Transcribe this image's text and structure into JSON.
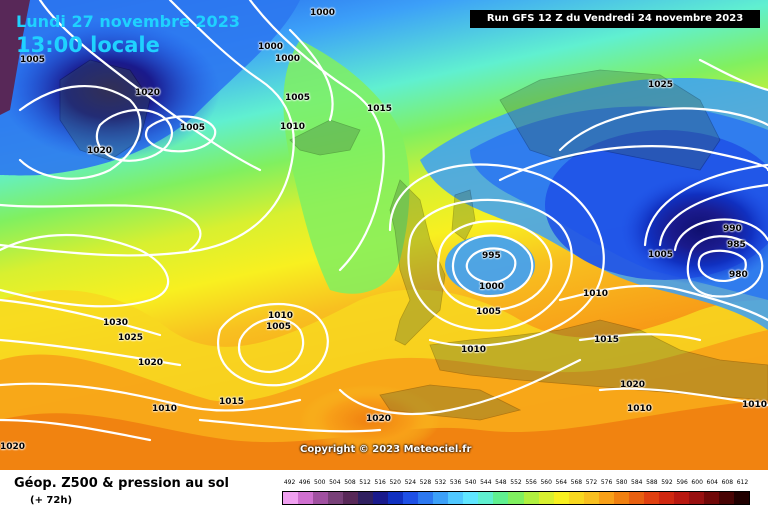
{
  "header": {
    "date": "Lundi 27 novembre 2023",
    "time": "13:00 locale",
    "run": "Run GFS 12 Z du Vendredi 24 novembre 2023"
  },
  "copyright": "Copyright © 2023 Meteociel.fr",
  "footer": {
    "title": "Géop. Z500 & pression au sol",
    "subtitle": "(+ 72h)"
  },
  "isobar_labels": [
    "1000",
    "1000",
    "1000",
    "1005",
    "1020",
    "1005",
    "1005",
    "1020",
    "1010",
    "1015",
    "1025",
    "995",
    "1000",
    "1005",
    "1005",
    "990",
    "985",
    "980",
    "1010",
    "1030",
    "1010",
    "1005",
    "1025",
    "1020",
    "1010",
    "1015",
    "1010",
    "1015",
    "1020",
    "1010",
    "1020",
    "1010",
    "1020"
  ],
  "scale": {
    "labels": [
      "492",
      "496",
      "500",
      "504",
      "508",
      "512",
      "516",
      "520",
      "524",
      "528",
      "532",
      "536",
      "540",
      "544",
      "548",
      "552",
      "556",
      "560",
      "564",
      "568",
      "572",
      "576",
      "580",
      "584",
      "588",
      "592",
      "596",
      "600",
      "604",
      "608",
      "612"
    ],
    "colors": [
      "#f0a0f0",
      "#d070d0",
      "#a050a0",
      "#784078",
      "#582858",
      "#302060",
      "#1a1a8c",
      "#1030c0",
      "#1e50e6",
      "#2c78f0",
      "#3ca0f8",
      "#50c8ff",
      "#60e6ff",
      "#60f0d0",
      "#60f090",
      "#80f060",
      "#b0f040",
      "#d8f030",
      "#f8f020",
      "#f8d820",
      "#f8c020",
      "#f8a018",
      "#f08010",
      "#e86010",
      "#e04010",
      "#d02810",
      "#b81810",
      "#981010",
      "#700808",
      "#480404",
      "#200000"
    ]
  }
}
